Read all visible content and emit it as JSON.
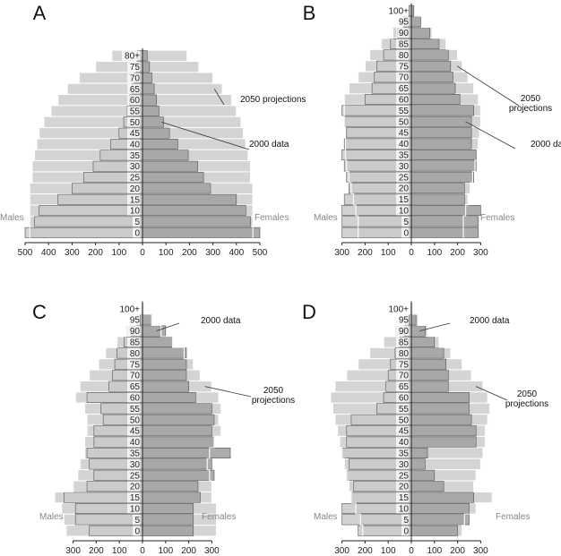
{
  "chart_data": [
    {
      "type": "bar",
      "panel": "A",
      "orientation": "population-pyramid",
      "age_groups": [
        "0",
        "5",
        "10",
        "15",
        "20",
        "25",
        "30",
        "35",
        "40",
        "45",
        "50",
        "55",
        "60",
        "65",
        "70",
        "75",
        "80+"
      ],
      "x_ticks": [
        500,
        400,
        300,
        200,
        100,
        0,
        100,
        200,
        300,
        400,
        500
      ],
      "xlim": [
        0,
        500
      ],
      "side_labels": {
        "left": "Males",
        "right": "Females"
      },
      "annotations": [
        "2050 projections",
        "2000 data"
      ],
      "series": [
        {
          "name": "2050 projections",
          "males": [
            480,
            480,
            480,
            480,
            480,
            470,
            470,
            460,
            450,
            440,
            420,
            390,
            360,
            320,
            270,
            200,
            130
          ],
          "females": [
            470,
            470,
            470,
            470,
            470,
            460,
            460,
            450,
            440,
            430,
            420,
            400,
            380,
            340,
            300,
            240,
            190
          ]
        },
        {
          "name": "2000 data",
          "males": [
            500,
            460,
            440,
            360,
            300,
            250,
            210,
            180,
            135,
            100,
            80,
            65,
            55,
            45,
            35,
            25,
            20
          ],
          "females": [
            500,
            460,
            440,
            400,
            290,
            260,
            235,
            195,
            150,
            115,
            90,
            70,
            60,
            50,
            40,
            30,
            20
          ]
        }
      ]
    },
    {
      "type": "bar",
      "panel": "B",
      "orientation": "population-pyramid",
      "age_groups": [
        "0",
        "5",
        "10",
        "15",
        "20",
        "25",
        "30",
        "35",
        "40",
        "45",
        "50",
        "55",
        "60",
        "65",
        "70",
        "75",
        "80",
        "85",
        "90",
        "95",
        "100+"
      ],
      "x_ticks": [
        300,
        200,
        100,
        0,
        100,
        200,
        300
      ],
      "xlim": [
        0,
        300
      ],
      "side_labels": {
        "left": "Males",
        "right": "Females"
      },
      "annotations": [
        "2050 projections",
        "2000 data"
      ],
      "series": [
        {
          "name": "2050 projections",
          "males": [
            230,
            230,
            240,
            250,
            260,
            270,
            280,
            285,
            285,
            285,
            290,
            290,
            290,
            270,
            230,
            200,
            180,
            130,
            80,
            40,
            15
          ],
          "females": [
            225,
            225,
            235,
            245,
            255,
            265,
            275,
            285,
            290,
            295,
            300,
            300,
            290,
            270,
            245,
            220,
            200,
            150,
            90,
            45,
            15
          ]
        },
        {
          "name": "2000 data",
          "males": [
            300,
            300,
            300,
            290,
            270,
            280,
            290,
            300,
            290,
            280,
            290,
            300,
            200,
            170,
            160,
            150,
            120,
            90,
            60,
            30,
            10
          ],
          "females": [
            290,
            290,
            300,
            230,
            230,
            270,
            280,
            280,
            260,
            260,
            260,
            270,
            210,
            190,
            180,
            170,
            160,
            120,
            80,
            40,
            10
          ]
        }
      ]
    },
    {
      "type": "bar",
      "panel": "C",
      "orientation": "population-pyramid",
      "age_groups": [
        "0",
        "5",
        "10",
        "15",
        "20",
        "25",
        "30",
        "35",
        "40",
        "45",
        "50",
        "55",
        "60",
        "65",
        "70",
        "75",
        "80",
        "85",
        "90",
        "95",
        "100+"
      ],
      "x_ticks": [
        300,
        200,
        100,
        0,
        100,
        200,
        300
      ],
      "xlim": [
        0,
        300
      ],
      "side_labels": {
        "left": "Males",
        "right": "Females"
      },
      "annotations": [
        "2000 data",
        "2050 projections"
      ],
      "series": [
        {
          "name": "2050 projections",
          "males": [
            330,
            340,
            350,
            380,
            300,
            280,
            270,
            250,
            250,
            240,
            240,
            250,
            290,
            270,
            230,
            190,
            160,
            110,
            70,
            30,
            5
          ],
          "females": [
            320,
            320,
            320,
            300,
            300,
            290,
            280,
            290,
            310,
            340,
            330,
            340,
            330,
            300,
            250,
            220,
            180,
            130,
            80,
            40,
            5
          ]
        },
        {
          "name": "2000 data",
          "males": [
            230,
            290,
            290,
            340,
            240,
            210,
            230,
            240,
            210,
            210,
            170,
            180,
            240,
            145,
            130,
            120,
            110,
            80,
            50,
            10,
            5
          ],
          "females": [
            220,
            220,
            220,
            250,
            240,
            310,
            300,
            380,
            310,
            300,
            310,
            300,
            230,
            200,
            190,
            190,
            190,
            130,
            100,
            40,
            5
          ]
        }
      ]
    },
    {
      "type": "bar",
      "panel": "D",
      "orientation": "population-pyramid",
      "age_groups": [
        "0",
        "5",
        "10",
        "15",
        "20",
        "25",
        "30",
        "35",
        "40",
        "45",
        "50",
        "55",
        "60",
        "65",
        "70",
        "75",
        "80",
        "85",
        "90",
        "95",
        "100+"
      ],
      "x_ticks": [
        300,
        200,
        100,
        0,
        100,
        200,
        300
      ],
      "xlim": [
        0,
        300
      ],
      "side_labels": {
        "left": "Males",
        "right": "Females"
      },
      "annotations": [
        "2000 data",
        "2050 projections"
      ],
      "series": [
        {
          "name": "2050 projections",
          "males": [
            210,
            220,
            240,
            260,
            270,
            280,
            290,
            300,
            310,
            320,
            330,
            340,
            350,
            330,
            280,
            230,
            180,
            120,
            70,
            30,
            5
          ],
          "females": [
            220,
            230,
            280,
            350,
            270,
            280,
            300,
            310,
            320,
            320,
            330,
            340,
            330,
            310,
            260,
            220,
            170,
            120,
            70,
            30,
            5
          ]
        },
        {
          "name": "2000 data",
          "males": [
            230,
            300,
            300,
            260,
            250,
            280,
            270,
            300,
            280,
            280,
            260,
            150,
            120,
            110,
            100,
            90,
            70,
            50,
            30,
            10,
            5
          ],
          "females": [
            200,
            250,
            250,
            270,
            140,
            100,
            60,
            70,
            280,
            280,
            260,
            250,
            250,
            160,
            160,
            150,
            140,
            100,
            60,
            20,
            5
          ]
        }
      ]
    }
  ],
  "panels": [
    {
      "letter": "A"
    },
    {
      "letter": "B"
    },
    {
      "letter": "C"
    },
    {
      "letter": "D"
    }
  ],
  "colors": {
    "projection": "#d4d4d4",
    "data_male": "#c9c9c9",
    "data_female": "#a3a3a3",
    "outline": "#555555",
    "axis": "#222222"
  }
}
